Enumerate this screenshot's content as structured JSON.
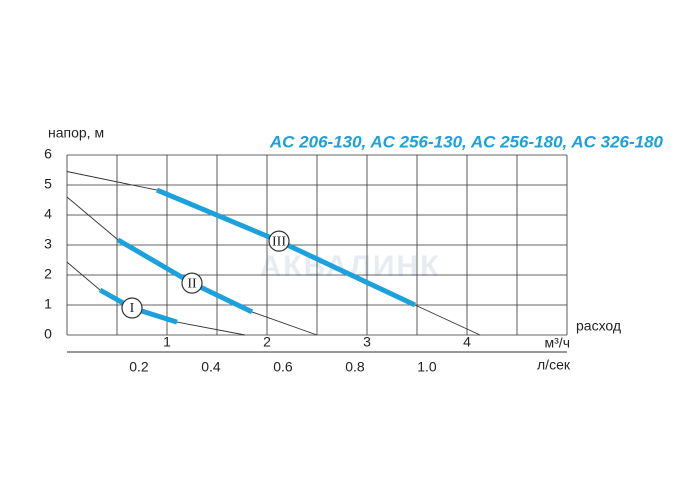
{
  "chart_data": {
    "type": "line",
    "title": "AC 206-130, AC 256-130, AC 256-180, AC 326-180",
    "y_label": "напор, м",
    "x_label": "расход",
    "x_unit": "м³/ч",
    "x2_unit": "л/сек",
    "watermark": "АКВАЛИНК",
    "xlim": [
      0,
      5
    ],
    "ylim": [
      0,
      6
    ],
    "x2lim": [
      0,
      1.3889
    ],
    "xticks": [
      1,
      2,
      3,
      4
    ],
    "xgrid": [
      0,
      0.5,
      1,
      1.5,
      2,
      2.5,
      3,
      3.5,
      4,
      4.5,
      5
    ],
    "yticks": [
      0,
      1,
      2,
      3,
      4,
      5,
      6
    ],
    "x2ticks": [
      0.2,
      0.4,
      0.6,
      0.8,
      {
        "value": 1.0,
        "label": "1.0"
      }
    ],
    "grid": true,
    "curve_color": "#333333",
    "range_color": "#1ba1dc",
    "series": [
      {
        "name": "I",
        "x": [
          0,
          0.33,
          0.65,
          1.1,
          1.78
        ],
        "values": [
          2.43,
          1.5,
          0.9,
          0.43,
          0
        ],
        "range": {
          "x": [
            0.33,
            0.65,
            1.1
          ],
          "values": [
            1.5,
            0.9,
            0.43
          ]
        }
      },
      {
        "name": "II",
        "x": [
          0,
          0.51,
          1.25,
          1.85,
          2.5
        ],
        "values": [
          4.6,
          3.17,
          1.73,
          0.77,
          0
        ],
        "range": {
          "x": [
            0.51,
            1.25,
            1.85
          ],
          "values": [
            3.17,
            1.73,
            0.77
          ]
        }
      },
      {
        "name": "III",
        "x": [
          0,
          0.9,
          2.12,
          3.48,
          4.13
        ],
        "values": [
          5.45,
          4.83,
          3.13,
          1.0,
          0
        ],
        "range": {
          "x": [
            0.9,
            2.12,
            3.48
          ],
          "values": [
            4.83,
            3.13,
            1.0
          ]
        }
      }
    ]
  }
}
